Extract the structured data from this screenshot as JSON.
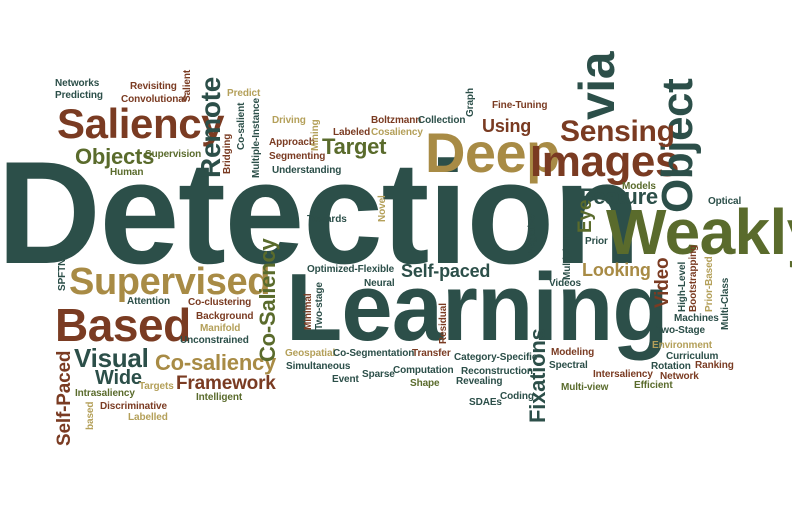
{
  "colors": {
    "teal": "#2c4f49",
    "olive": "#5a6b2c",
    "gold": "#a88b45",
    "brown": "#7a3b22",
    "tan": "#b4a05a",
    "background": "#ffffff"
  },
  "words": [
    {
      "text": "Detection",
      "color": "teal"
    },
    {
      "text": "Learning",
      "color": "teal"
    },
    {
      "text": "Weakly",
      "color": "olive"
    },
    {
      "text": "Deep",
      "color": "gold"
    },
    {
      "text": "Images",
      "color": "brown"
    },
    {
      "text": "Saliency",
      "color": "brown"
    },
    {
      "text": "Based",
      "color": "brown"
    },
    {
      "text": "Supervised",
      "color": "gold"
    },
    {
      "text": "Object",
      "color": "teal"
    },
    {
      "text": "via",
      "color": "teal"
    },
    {
      "text": "Sensing",
      "color": "brown"
    },
    {
      "text": "Remote",
      "color": "teal"
    },
    {
      "text": "Target",
      "color": "olive"
    },
    {
      "text": "Objects",
      "color": "olive"
    },
    {
      "text": "Using",
      "color": "brown"
    },
    {
      "text": "Feature",
      "color": "teal"
    },
    {
      "text": "Visual",
      "color": "teal"
    },
    {
      "text": "Co-saliency",
      "color": "gold"
    },
    {
      "text": "Self-paced",
      "color": "teal"
    },
    {
      "text": "Looking",
      "color": "gold"
    },
    {
      "text": "Co-Saliency",
      "color": "olive"
    },
    {
      "text": "Framework",
      "color": "brown"
    },
    {
      "text": "Wide",
      "color": "teal"
    },
    {
      "text": "Self-Paced",
      "color": "brown"
    },
    {
      "text": "Fixations",
      "color": "teal"
    },
    {
      "text": "Video",
      "color": "brown"
    },
    {
      "text": "Eye",
      "color": "olive"
    },
    {
      "text": "Networks",
      "color": "teal"
    },
    {
      "text": "Predicting",
      "color": "teal"
    },
    {
      "text": "Revisiting",
      "color": "brown"
    },
    {
      "text": "Convolutional",
      "color": "brown"
    },
    {
      "text": "Salient",
      "color": "brown"
    },
    {
      "text": "Predict",
      "color": "tan"
    },
    {
      "text": "Driving",
      "color": "tan"
    },
    {
      "text": "Co-salient",
      "color": "teal"
    },
    {
      "text": "Multiple-Instance",
      "color": "teal"
    },
    {
      "text": "Approach",
      "color": "brown"
    },
    {
      "text": "Segmenting",
      "color": "brown"
    },
    {
      "text": "Mining",
      "color": "tan"
    },
    {
      "text": "Boltzmann",
      "color": "brown"
    },
    {
      "text": "Labeled",
      "color": "brown"
    },
    {
      "text": "Cosaliency",
      "color": "tan"
    },
    {
      "text": "Collection",
      "color": "teal"
    },
    {
      "text": "Graph",
      "color": "teal"
    },
    {
      "text": "Fine-Tuning",
      "color": "brown"
    },
    {
      "text": "Supervision",
      "color": "olive"
    },
    {
      "text": "Human",
      "color": "olive"
    },
    {
      "text": "Bridging",
      "color": "brown"
    },
    {
      "text": "Understanding",
      "color": "teal"
    },
    {
      "text": "Models",
      "color": "olive"
    },
    {
      "text": "Optical",
      "color": "teal"
    },
    {
      "text": "Towards",
      "color": "teal"
    },
    {
      "text": "Novel",
      "color": "tan"
    },
    {
      "text": "Negative",
      "color": "teal"
    },
    {
      "text": "Multiple-Instance",
      "color": "teal"
    },
    {
      "text": "Prior",
      "color": "teal"
    },
    {
      "text": "SPFTN",
      "color": "teal"
    },
    {
      "text": "Attention",
      "color": "teal"
    },
    {
      "text": "Co-clustering",
      "color": "brown"
    },
    {
      "text": "Background",
      "color": "brown"
    },
    {
      "text": "Manifold",
      "color": "tan"
    },
    {
      "text": "Unconstrained",
      "color": "teal"
    },
    {
      "text": "Optimized-Flexible",
      "color": "teal"
    },
    {
      "text": "Neural",
      "color": "teal"
    },
    {
      "text": "Minimal",
      "color": "brown"
    },
    {
      "text": "Two-stage",
      "color": "teal"
    },
    {
      "text": "Videos",
      "color": "teal"
    },
    {
      "text": "Machines",
      "color": "teal"
    },
    {
      "text": "High-Level",
      "color": "teal"
    },
    {
      "text": "Bootstrapping",
      "color": "brown"
    },
    {
      "text": "Prior-Based",
      "color": "tan"
    },
    {
      "text": "Multi-Class",
      "color": "teal"
    },
    {
      "text": "Two-Stage",
      "color": "teal"
    },
    {
      "text": "Environment",
      "color": "tan"
    },
    {
      "text": "Curriculum",
      "color": "teal"
    },
    {
      "text": "Rotation",
      "color": "teal"
    },
    {
      "text": "Ranking",
      "color": "brown"
    },
    {
      "text": "Network",
      "color": "brown"
    },
    {
      "text": "Intersaliency",
      "color": "brown"
    },
    {
      "text": "Efficient",
      "color": "olive"
    },
    {
      "text": "Modeling",
      "color": "brown"
    },
    {
      "text": "Spectral",
      "color": "teal"
    },
    {
      "text": "Multi-view",
      "color": "olive"
    },
    {
      "text": "Geospatial",
      "color": "tan"
    },
    {
      "text": "Co-Segmentation",
      "color": "teal"
    },
    {
      "text": "Transfer",
      "color": "brown"
    },
    {
      "text": "Category-Specific",
      "color": "teal"
    },
    {
      "text": "Residual",
      "color": "brown"
    },
    {
      "text": "Simultaneous",
      "color": "teal"
    },
    {
      "text": "Event",
      "color": "teal"
    },
    {
      "text": "Sparse",
      "color": "teal"
    },
    {
      "text": "Computation",
      "color": "teal"
    },
    {
      "text": "Shape",
      "color": "olive"
    },
    {
      "text": "Reconstruction",
      "color": "teal"
    },
    {
      "text": "Revealing",
      "color": "teal"
    },
    {
      "text": "SDAEs",
      "color": "teal"
    },
    {
      "text": "Coding",
      "color": "teal"
    },
    {
      "text": "Targets",
      "color": "tan"
    },
    {
      "text": "Intrasaliency",
      "color": "olive"
    },
    {
      "text": "Discriminative",
      "color": "brown"
    },
    {
      "text": "Intelligent",
      "color": "olive"
    },
    {
      "text": "Labelled",
      "color": "tan"
    },
    {
      "text": "based",
      "color": "tan"
    }
  ]
}
